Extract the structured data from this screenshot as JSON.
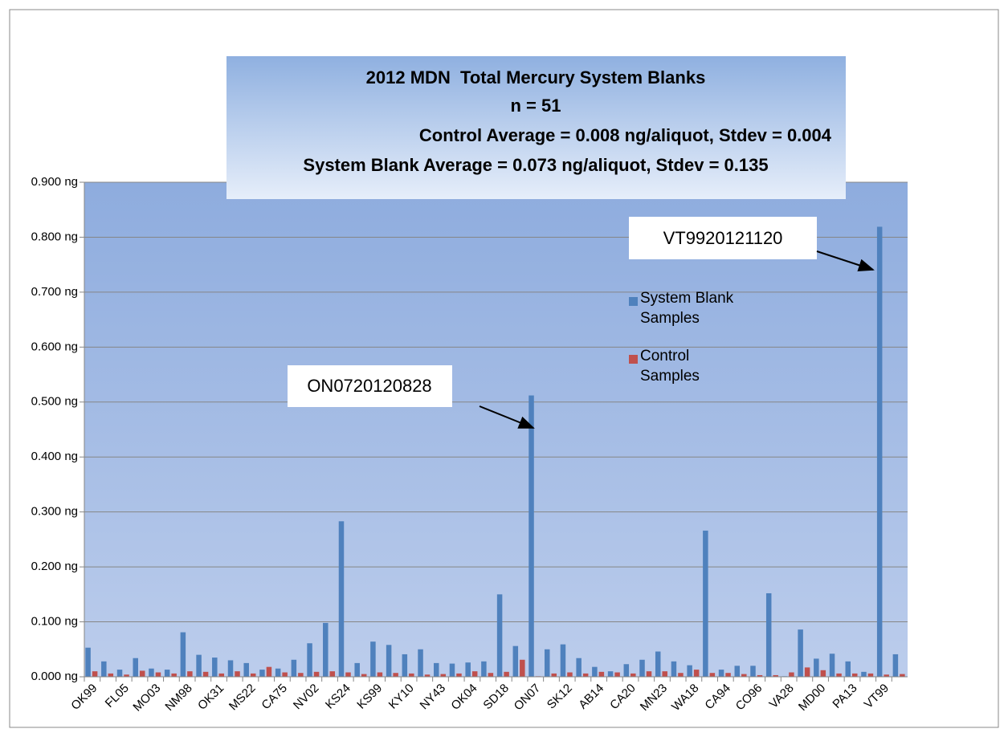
{
  "chart_data": {
    "type": "bar",
    "title": "2012 MDN  Total Mercury System Blanks",
    "subtitle": "n = 51",
    "notes": [
      "Control Average = 0.008 ng/aliquot, Stdev = 0.004",
      "System Blank Average = 0.073 ng/aliquot, Stdev = 0.135"
    ],
    "annotations": [
      {
        "text": "ON0720120828",
        "category_index": 28
      },
      {
        "text": "VT9920121120",
        "category_index": 50
      }
    ],
    "categories": [
      "OK99",
      null,
      "FL05",
      null,
      "MO03",
      null,
      "NM98",
      null,
      "OK31",
      null,
      "MS22",
      null,
      "CA75",
      null,
      "NV02",
      null,
      "KS24",
      null,
      "KS99",
      null,
      "KY10",
      null,
      "NY43",
      null,
      "OK04",
      null,
      "SD18",
      null,
      "ON07",
      null,
      "SK12",
      null,
      "AB14",
      null,
      "CA20",
      null,
      "MN23",
      null,
      "WA18",
      null,
      "CA94",
      null,
      "CO96",
      null,
      "VA28",
      null,
      "MD00",
      null,
      "PA13",
      null,
      "VT99",
      null
    ],
    "series": [
      {
        "name": "System Blank Samples",
        "color": "#4f81bd",
        "values": [
          0.053,
          0.028,
          0.013,
          0.034,
          0.015,
          0.013,
          0.081,
          0.04,
          0.035,
          0.03,
          0.025,
          0.013,
          0.015,
          0.031,
          0.061,
          0.098,
          0.283,
          0.025,
          0.064,
          0.058,
          0.041,
          0.05,
          0.025,
          0.024,
          0.026,
          0.028,
          0.15,
          0.056,
          0.512,
          0.05,
          0.059,
          0.034,
          0.018,
          0.01,
          0.023,
          0.031,
          0.046,
          0.028,
          0.021,
          0.266,
          0.013,
          0.02,
          0.02,
          0.152,
          0.001,
          0.086,
          0.033,
          0.042,
          0.028,
          0.009,
          0.819,
          0.041
        ]
      },
      {
        "name": "Control Samples",
        "color": "#c0504d",
        "values": [
          0.01,
          0.006,
          0.004,
          0.011,
          0.008,
          0.006,
          0.01,
          0.009,
          0.006,
          0.01,
          0.006,
          0.018,
          0.008,
          0.007,
          0.009,
          0.01,
          0.008,
          0.005,
          0.008,
          0.007,
          0.006,
          0.004,
          0.005,
          0.006,
          0.01,
          0.007,
          0.009,
          0.031,
          0.001,
          0.006,
          0.008,
          0.006,
          0.009,
          0.008,
          0.006,
          0.01,
          0.01,
          0.007,
          0.013,
          0.007,
          0.007,
          0.005,
          0.003,
          0.003,
          0.008,
          0.017,
          0.012,
          0.006,
          0.006,
          0.006,
          0.004,
          0.005
        ]
      }
    ],
    "ylim": [
      0,
      0.9
    ],
    "yticks": [
      {
        "value": 0,
        "label": "0.000 ng"
      },
      {
        "value": 0.1,
        "label": "0.100 ng"
      },
      {
        "value": 0.2,
        "label": "0.200 ng"
      },
      {
        "value": 0.3,
        "label": "0.300 ng"
      },
      {
        "value": 0.4,
        "label": "0.400 ng"
      },
      {
        "value": 0.5,
        "label": "0.500 ng"
      },
      {
        "value": 0.6,
        "label": "0.600 ng"
      },
      {
        "value": 0.7,
        "label": "0.700 ng"
      },
      {
        "value": 0.8,
        "label": "0.800 ng"
      },
      {
        "value": 0.9,
        "label": "0.900 ng"
      }
    ],
    "grid": true
  }
}
